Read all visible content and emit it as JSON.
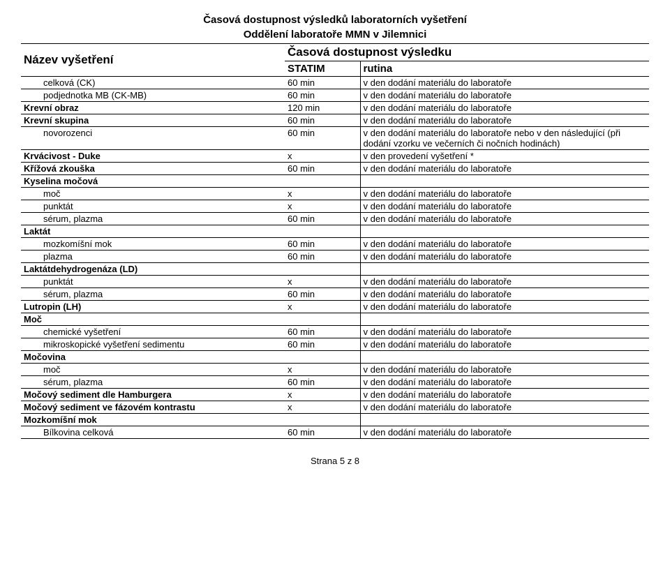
{
  "title_line1": "Časová dostupnost výsledků laboratorních vyšetření",
  "title_line2": "Oddělení laboratoře MMN v Jilemnici",
  "header_name": "Název vyšetření",
  "header_result": "Časová dostupnost výsledku",
  "header_statim": "STATIM",
  "header_rutina": "rutina",
  "footer": "Strana 5 z 8",
  "rows": [
    {
      "name": "celková (CK)",
      "indent": 1,
      "bold": false,
      "statim": "60 min",
      "rutina": "v den dodání materiálu do laboratoře"
    },
    {
      "name": "podjednotka MB (CK-MB)",
      "indent": 1,
      "bold": false,
      "statim": "60 min",
      "rutina": "v den dodání materiálu do laboratoře"
    },
    {
      "name": "Krevní obraz",
      "indent": 0,
      "bold": true,
      "statim": "120 min",
      "rutina": "v den dodání materiálu do laboratoře"
    },
    {
      "name": "Krevní skupina",
      "indent": 0,
      "bold": true,
      "statim": "60 min",
      "rutina": "v den dodání materiálu do laboratoře"
    },
    {
      "name": "novorozenci",
      "indent": 1,
      "bold": false,
      "statim": "60 min",
      "rutina": "v den dodání materiálu do laboratoře nebo  v den následující (při dodání vzorku ve večerních či nočních hodinách)"
    },
    {
      "name": "Krvácivost  - Duke",
      "indent": 0,
      "bold": true,
      "statim": "x",
      "rutina": "v den provedení vyšetření *"
    },
    {
      "name": "Křížová zkouška",
      "indent": 0,
      "bold": true,
      "statim": "60 min",
      "rutina": "v den dodání materiálu do laboratoře"
    },
    {
      "name": "Kyselina močová",
      "indent": 0,
      "bold": true,
      "statim": "",
      "rutina": ""
    },
    {
      "name": "moč",
      "indent": 1,
      "bold": false,
      "statim": "x",
      "rutina": "v den dodání materiálu do laboratoře"
    },
    {
      "name": "punktát",
      "indent": 1,
      "bold": false,
      "statim": "x",
      "rutina": "v den dodání materiálu do laboratoře"
    },
    {
      "name": "sérum, plazma",
      "indent": 1,
      "bold": false,
      "statim": "60 min",
      "rutina": "v den dodání materiálu do laboratoře"
    },
    {
      "name": "Laktát",
      "indent": 0,
      "bold": true,
      "statim": "",
      "rutina": ""
    },
    {
      "name": "mozkomíšní mok",
      "indent": 1,
      "bold": false,
      "statim": "60 min",
      "rutina": "v den dodání materiálu do laboratoře"
    },
    {
      "name": "plazma",
      "indent": 1,
      "bold": false,
      "statim": "60 min",
      "rutina": "v den dodání materiálu do laboratoře"
    },
    {
      "name": "Laktátdehydrogenáza (LD)",
      "indent": 0,
      "bold": true,
      "statim": "",
      "rutina": ""
    },
    {
      "name": "punktát",
      "indent": 1,
      "bold": false,
      "statim": "x",
      "rutina": "v den dodání materiálu do laboratoře"
    },
    {
      "name": "sérum, plazma",
      "indent": 1,
      "bold": false,
      "statim": "60 min",
      "rutina": "v den dodání materiálu do laboratoře"
    },
    {
      "name": "Lutropin (LH)",
      "indent": 0,
      "bold": true,
      "statim": "x",
      "rutina": "v den dodání materiálu do laboratoře"
    },
    {
      "name": "Moč",
      "indent": 0,
      "bold": true,
      "statim": "",
      "rutina": ""
    },
    {
      "name": "chemické vyšetření",
      "indent": 1,
      "bold": false,
      "statim": "60 min",
      "rutina": "v den dodání materiálu do laboratoře"
    },
    {
      "name": "mikroskopické vyšetření sedimentu",
      "indent": 1,
      "bold": false,
      "statim": "60 min",
      "rutina": "v den dodání materiálu do laboratoře"
    },
    {
      "name": "Močovina",
      "indent": 0,
      "bold": true,
      "statim": "",
      "rutina": ""
    },
    {
      "name": "moč",
      "indent": 1,
      "bold": false,
      "statim": "x",
      "rutina": "v den dodání materiálu do laboratoře"
    },
    {
      "name": "sérum, plazma",
      "indent": 1,
      "bold": false,
      "statim": "60 min",
      "rutina": "v den dodání materiálu do laboratoře"
    },
    {
      "name": "Močový sediment dle Hamburgera",
      "indent": 0,
      "bold": true,
      "statim": "x",
      "rutina": "v den dodání materiálu do laboratoře"
    },
    {
      "name": "Močový sediment ve fázovém kontrastu",
      "indent": 0,
      "bold": true,
      "statim": "x",
      "rutina": "v den dodání materiálu do laboratoře"
    },
    {
      "name": "Mozkomíšní mok",
      "indent": 0,
      "bold": true,
      "statim": "",
      "rutina": ""
    },
    {
      "name": "Bílkovina celková",
      "indent": 1,
      "bold": false,
      "statim": "60 min",
      "rutina": "v den dodání materiálu do laboratoře"
    }
  ]
}
